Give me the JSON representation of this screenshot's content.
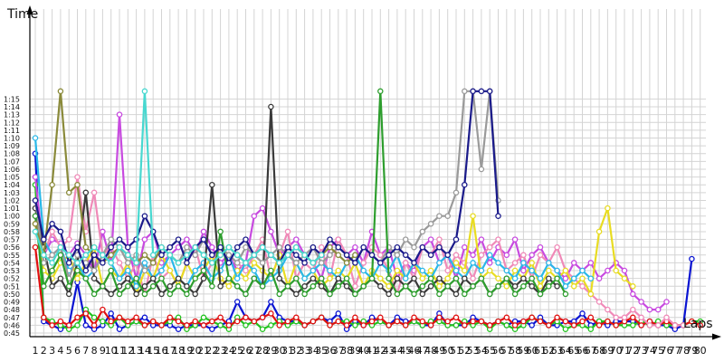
{
  "chart_data": {
    "type": "line",
    "ylabel": "Time",
    "xlabel": "Laps",
    "y_tick_labels": [
      "0:45",
      "0:46",
      "0:47",
      "0:48",
      "0:49",
      "0:50",
      "0:51",
      "0:52",
      "0:53",
      "0:54",
      "0:55",
      "0:56",
      "0:57",
      "0:58",
      "0:59",
      "1:00",
      "1:01",
      "1:02",
      "1:03",
      "1:04",
      "1:05",
      "1:06",
      "1:07",
      "1:08",
      "1:09",
      "1:10",
      "1:11",
      "1:12",
      "1:13",
      "1:14",
      "1:15"
    ],
    "y_unit": "seconds",
    "ylim": [
      44,
      76.5
    ],
    "xlim": [
      1,
      80
    ],
    "grid": true,
    "x": [
      1,
      2,
      3,
      4,
      5,
      6,
      7,
      8,
      9,
      10,
      11,
      12,
      13,
      14,
      15,
      16,
      17,
      18,
      19,
      20,
      21,
      22,
      23,
      24,
      25,
      26,
      27,
      28,
      29,
      30,
      31,
      32,
      33,
      34,
      35,
      36,
      37,
      38,
      39,
      40,
      41,
      42,
      43,
      44,
      45,
      46,
      47,
      48,
      49,
      50,
      51,
      52,
      53,
      54,
      55,
      56,
      57,
      58,
      59,
      60,
      61,
      62,
      63,
      64,
      65,
      66,
      67,
      68,
      69,
      70,
      71,
      72,
      73,
      74,
      75,
      76,
      77,
      78,
      79,
      80
    ],
    "series": [
      {
        "color": "#0a14d2",
        "values": [
          68,
          46.5,
          46,
          45.5,
          46,
          51.5,
          46,
          45.5,
          46,
          47.5,
          45.5,
          46,
          46.5,
          47,
          46,
          46,
          46,
          45.5,
          46,
          46,
          46,
          45.5,
          46,
          46.5,
          49,
          47,
          46.5,
          47,
          49,
          47,
          46.5,
          46.5,
          46,
          46.5,
          47,
          46.5,
          47.5,
          45.5,
          46.5,
          46,
          47,
          46.5,
          46,
          47,
          46.5,
          46.5,
          46,
          46,
          47.5,
          46,
          46,
          46,
          47,
          46.5,
          46,
          46.5,
          46,
          46.5,
          46.5,
          46,
          47,
          46,
          46,
          46.5,
          46.5,
          47.5,
          46,
          46.5,
          46,
          46.5,
          46.5,
          46.5,
          46,
          46.5,
          46,
          46,
          45.5,
          46,
          54.5,
          null
        ]
      },
      {
        "color": "#22c21e",
        "values": [
          64,
          47,
          46.5,
          46,
          45.5,
          46,
          48,
          47,
          46.5,
          46,
          47,
          46,
          46.5,
          46,
          46.5,
          46,
          46.5,
          47,
          45.5,
          46,
          47,
          46.5,
          46,
          45.5,
          47,
          46,
          46.5,
          45.5,
          46,
          46.5,
          46,
          46.5,
          46,
          46.5,
          47,
          46,
          46.5,
          46.5,
          46,
          46.5,
          46,
          46.5,
          46,
          46.5,
          46,
          46.5,
          46,
          46.5,
          46.5,
          46,
          46,
          46.5,
          46,
          46.5,
          45.5,
          46.5,
          46,
          45.5,
          46,
          47,
          46.5,
          46,
          46.5,
          45.5,
          46,
          46,
          45.5,
          46.5,
          46.5,
          46,
          46,
          46,
          46.5,
          46,
          46.5,
          46,
          46,
          46,
          46.5,
          46.5
        ]
      },
      {
        "color": "#e01010",
        "values": [
          56,
          47,
          46,
          46.5,
          46,
          47,
          47.5,
          46,
          48,
          46.5,
          47,
          46.5,
          47,
          46,
          46.5,
          46,
          47,
          46.5,
          46,
          46.5,
          46,
          46.5,
          47,
          46,
          46.5,
          47,
          46.5,
          47,
          47.5,
          46,
          46.5,
          47,
          46,
          46.5,
          47,
          46,
          46.5,
          46,
          47,
          46,
          46.5,
          47,
          46,
          46.5,
          46,
          47,
          46.5,
          46,
          47,
          46.5,
          47,
          46,
          46.5,
          46.5,
          46,
          46.5,
          47,
          46,
          46.5,
          47,
          46.5,
          46,
          47,
          46.5,
          46,
          46.5,
          47,
          46,
          46.5,
          46,
          46.5,
          47,
          46,
          46.5,
          46,
          46.5,
          46,
          46,
          46.5,
          46
        ]
      },
      {
        "color": "#c84ae0",
        "values": [
          65,
          55,
          57,
          56.5,
          55,
          56.5,
          55,
          53,
          58,
          54,
          73,
          56,
          52,
          57,
          58,
          54,
          55,
          56,
          57,
          55,
          58,
          56,
          54,
          55,
          53,
          54,
          60,
          61,
          58,
          55,
          56,
          57,
          55,
          54,
          52,
          56,
          57,
          55,
          56,
          54,
          58,
          55,
          56,
          52,
          54,
          53,
          56,
          57,
          54,
          55,
          52,
          56,
          55,
          57,
          54,
          56,
          55,
          57,
          53,
          55,
          56,
          54,
          53,
          52,
          54,
          53,
          54,
          52,
          53,
          54,
          53,
          50,
          49,
          48,
          48,
          49,
          null,
          null,
          null,
          null
        ]
      },
      {
        "color": "#f08ab8",
        "values": [
          60,
          55,
          58,
          56,
          57,
          65,
          58,
          63,
          55,
          56,
          54,
          52,
          54,
          50,
          55,
          52,
          53,
          51,
          54,
          56,
          52,
          54,
          56,
          55,
          54,
          53,
          55,
          57,
          52,
          55,
          58,
          52,
          54,
          53,
          56,
          52,
          57,
          55,
          51,
          54,
          56,
          55,
          53,
          50,
          54,
          52,
          56,
          55,
          57,
          53,
          55,
          54,
          52,
          55,
          56,
          57,
          53,
          54,
          55,
          52,
          55,
          54,
          56,
          53,
          52,
          51,
          50,
          49,
          48,
          47,
          47,
          48,
          47,
          46,
          46,
          47,
          46,
          46,
          null,
          null
        ]
      },
      {
        "color": "#e8dc22",
        "values": [
          59,
          53,
          52,
          54,
          55,
          52,
          54,
          56,
          51,
          53,
          52,
          54,
          50,
          53,
          52,
          55,
          53,
          51,
          54,
          52,
          53,
          55,
          52,
          51,
          53,
          52,
          54,
          53,
          52,
          55,
          51,
          54,
          52,
          53,
          51,
          52,
          53,
          52,
          54,
          51,
          53,
          52,
          51,
          53,
          52,
          54,
          52,
          53,
          51,
          52,
          54,
          53,
          60,
          52,
          53,
          52,
          51,
          53,
          52,
          54,
          51,
          53,
          52,
          53,
          51,
          52,
          50,
          58,
          61,
          53,
          52,
          51,
          null,
          null,
          null,
          null,
          null,
          null,
          null,
          null
        ]
      },
      {
        "color": "#2ab8e8",
        "values": [
          70,
          57,
          55,
          56,
          53,
          54,
          52,
          53,
          55,
          54,
          52,
          53,
          51,
          54,
          52,
          53,
          55,
          52,
          51,
          53,
          54,
          52,
          53,
          55,
          52,
          54,
          53,
          51,
          52,
          53,
          55,
          54,
          52,
          53,
          54,
          53,
          52,
          54,
          55,
          53,
          52,
          54,
          53,
          55,
          52,
          54,
          53,
          52,
          54,
          55,
          53,
          52,
          54,
          53,
          55,
          54,
          53,
          52,
          54,
          53,
          52,
          54,
          53,
          51,
          52,
          53,
          52,
          null,
          null,
          null,
          null,
          null,
          null,
          null,
          null,
          null,
          null,
          null,
          null,
          null
        ]
      },
      {
        "color": "#3a3a3a",
        "values": [
          61,
          56,
          51,
          52,
          50,
          54,
          63,
          52,
          51,
          50,
          51,
          52,
          50,
          51,
          52,
          50,
          51,
          52,
          51,
          50,
          52,
          64,
          51,
          52,
          51,
          50,
          52,
          51,
          74,
          52,
          51,
          50,
          51,
          52,
          51,
          50,
          52,
          51,
          50,
          51,
          52,
          51,
          50,
          52,
          51,
          52,
          50,
          51,
          52,
          51,
          50,
          52,
          51,
          52,
          50,
          51,
          52,
          51,
          52,
          51,
          50,
          52,
          51,
          null,
          null,
          null,
          null,
          null,
          null,
          null,
          null,
          null,
          null,
          null,
          null,
          null,
          null,
          null,
          null,
          null
        ]
      },
      {
        "color": "#9a9a9a",
        "values": [
          62,
          54,
          55,
          56,
          52,
          55,
          54,
          53,
          55,
          57,
          56,
          54,
          55,
          53,
          54,
          56,
          55,
          54,
          56,
          55,
          57,
          55,
          56,
          55,
          54,
          56,
          55,
          54,
          55,
          56,
          55,
          54,
          55,
          56,
          54,
          55,
          56,
          55,
          54,
          56,
          55,
          54,
          56,
          55,
          57,
          56,
          58,
          59,
          60,
          60,
          63,
          76,
          76,
          66,
          76,
          62,
          null,
          null,
          null,
          null,
          null,
          null,
          null,
          null,
          null,
          null,
          null,
          null,
          null,
          null,
          null,
          null,
          null,
          null,
          null,
          null,
          null,
          null,
          null,
          null
        ]
      },
      {
        "color": "#2e9e2e",
        "values": [
          60,
          51,
          53,
          55,
          51,
          53,
          52,
          50,
          51,
          53,
          50,
          51,
          52,
          50,
          51,
          52,
          50,
          51,
          50,
          52,
          53,
          51,
          58,
          52,
          51,
          50,
          52,
          51,
          53,
          50,
          51,
          52,
          50,
          51,
          52,
          50,
          51,
          52,
          50,
          51,
          52,
          76,
          52,
          50,
          51,
          50,
          51,
          52,
          50,
          51,
          52,
          50,
          51,
          52,
          50,
          51,
          52,
          50,
          51,
          52,
          50,
          51,
          52,
          50,
          null,
          null,
          null,
          null,
          null,
          null,
          null,
          null,
          null,
          null,
          null,
          null,
          null,
          null,
          null,
          null
        ]
      },
      {
        "color": "#8a8a3a",
        "values": [
          59,
          55,
          64,
          76,
          63,
          64,
          56,
          55,
          54,
          55,
          56,
          55,
          54,
          55,
          54,
          56,
          55,
          54,
          55,
          56,
          55,
          54,
          55,
          56,
          55,
          54,
          55,
          56,
          55,
          54,
          55,
          56,
          55,
          54,
          55,
          56,
          55,
          54,
          55,
          null,
          null,
          null,
          null,
          null,
          null,
          null,
          null,
          null,
          null,
          null,
          null,
          null,
          null,
          null,
          null,
          null,
          null,
          null,
          null,
          null,
          null,
          null,
          null,
          null,
          null,
          null,
          null,
          null,
          null,
          null,
          null,
          null,
          null,
          null,
          null,
          null,
          null,
          null,
          null,
          null
        ]
      },
      {
        "color": "#1a1a8a",
        "values": [
          62,
          57,
          59,
          58,
          54,
          56,
          53,
          55,
          54,
          56,
          57,
          56,
          57,
          60,
          58,
          55,
          56,
          57,
          54,
          56,
          57,
          55,
          56,
          54,
          56,
          57,
          55,
          56,
          55,
          54,
          56,
          55,
          54,
          56,
          55,
          57,
          56,
          55,
          54,
          56,
          55,
          54,
          55,
          56,
          55,
          54,
          56,
          55,
          56,
          55,
          57,
          64,
          76,
          76,
          76,
          60,
          null,
          null,
          null,
          null,
          null,
          null,
          null,
          null,
          null,
          null,
          null,
          null,
          null,
          null,
          null,
          null,
          null,
          null,
          null,
          null,
          null,
          null,
          null,
          null
        ]
      },
      {
        "color": "#48d8d0",
        "values": [
          58,
          55,
          54,
          56,
          55,
          54,
          55,
          56,
          55,
          54,
          56,
          55,
          54,
          76,
          55,
          56,
          55,
          54,
          55,
          56,
          55,
          54,
          55,
          56,
          55,
          54,
          55,
          56,
          55,
          54,
          55,
          56,
          55,
          54,
          55,
          null,
          null,
          null,
          null,
          null,
          null,
          null,
          null,
          null,
          null,
          null,
          null,
          null,
          null,
          null,
          null,
          null,
          null,
          null,
          null,
          null,
          null,
          null,
          null,
          null,
          null,
          null,
          null,
          null,
          null,
          null,
          null,
          null,
          null,
          null,
          null,
          null,
          null,
          null,
          null,
          null,
          null,
          null,
          null,
          null
        ]
      }
    ]
  }
}
